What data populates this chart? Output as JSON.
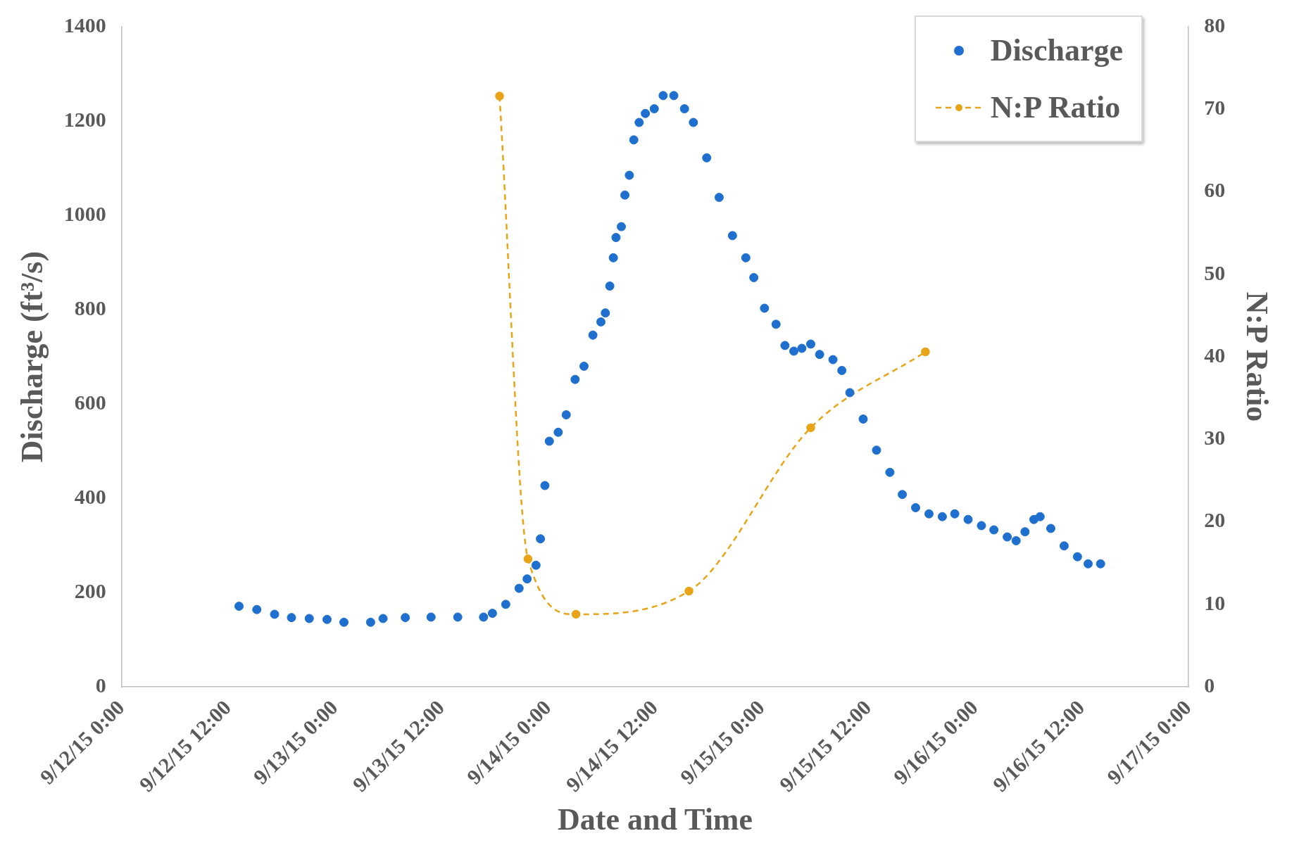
{
  "chart_data": {
    "type": "scatter",
    "xlabel": "Date and Time",
    "ylabel": "Discharge (ft³/s)",
    "y2label": "N:P Ratio",
    "xlim": [
      "--09-12T00:00",
      "--09-17T00:00"
    ],
    "xticks": [
      {
        "value": "--09-12T00:00",
        "label": "9/12/15 0:00"
      },
      {
        "value": "--09-12T12:00",
        "label": "9/12/15 12:00"
      },
      {
        "value": "--09-13T00:00",
        "label": "9/13/15 0:00"
      },
      {
        "value": "--09-13T12:00",
        "label": "9/13/15 12:00"
      },
      {
        "value": "--09-14T00:00",
        "label": "9/14/15 0:00"
      },
      {
        "value": "--09-14T12:00",
        "label": "9/14/15 12:00"
      },
      {
        "value": "--09-15T00:00",
        "label": "9/15/15 0:00"
      },
      {
        "value": "--09-15T12:00",
        "label": "9/15/15 12:00"
      },
      {
        "value": "--09-16T00:00",
        "label": "9/16/15 0:00"
      },
      {
        "value": "--09-16T12:00",
        "label": "9/16/15 12:00"
      },
      {
        "value": "--09-17T00:00",
        "label": "9/17/15 0:00"
      }
    ],
    "ylim": [
      0,
      1400
    ],
    "yticks": [
      0,
      200,
      400,
      600,
      800,
      1000,
      1200,
      1400
    ],
    "y2lim": [
      0,
      80
    ],
    "y2ticks": [
      0,
      10,
      20,
      30,
      40,
      50,
      60,
      70,
      80
    ],
    "grid": false,
    "legend": "top right",
    "series": [
      {
        "name": "Discharge",
        "color": "#1f6fcf",
        "marker": "circle",
        "x": [
          "--09-12T13:12",
          "--09-12T15:12",
          "--09-12T17:12",
          "--09-12T19:06",
          "--09-12T21:06",
          "--09-12T23:06",
          "--09-13T01:00",
          "--09-13T04:00",
          "--09-13T05:24",
          "--09-13T07:54",
          "--09-13T10:48",
          "--09-13T13:48",
          "--09-13T16:42",
          "--09-13T17:42",
          "--09-13T19:12",
          "--09-13T20:42",
          "--09-13T21:36",
          "--09-13T22:36",
          "--09-13T23:06",
          "--09-13T23:36",
          "--09-14T00:06",
          "--09-14T01:06",
          "--09-14T02:00",
          "--09-14T03:00",
          "--09-14T04:00",
          "--09-14T05:00",
          "--09-14T05:54",
          "--09-14T06:24",
          "--09-14T06:54",
          "--09-14T07:18",
          "--09-14T07:36",
          "--09-14T08:12",
          "--09-14T08:36",
          "--09-14T09:06",
          "--09-14T09:36",
          "--09-14T10:12",
          "--09-14T10:54",
          "--09-14T11:54",
          "--09-14T12:54",
          "--09-14T14:06",
          "--09-14T15:18",
          "--09-14T16:18",
          "--09-14T17:48",
          "--09-14T19:12",
          "--09-14T20:42",
          "--09-14T22:12",
          "--09-14T23:06",
          "--09-15T00:18",
          "--09-15T01:36",
          "--09-15T02:36",
          "--09-15T03:36",
          "--09-15T04:30",
          "--09-15T05:30",
          "--09-15T06:30",
          "--09-15T08:00",
          "--09-15T09:00",
          "--09-15T09:54",
          "--09-15T11:24",
          "--09-15T12:54",
          "--09-15T14:24",
          "--09-15T15:48",
          "--09-15T17:18",
          "--09-15T18:48",
          "--09-15T20:18",
          "--09-15T21:42",
          "--09-15T23:12",
          "--09-16T00:42",
          "--09-16T02:06",
          "--09-16T03:36",
          "--09-16T04:36",
          "--09-16T05:36",
          "--09-16T06:36",
          "--09-16T07:18",
          "--09-16T08:30",
          "--09-16T10:00",
          "--09-16T11:30",
          "--09-16T12:42",
          "--09-16T14:06"
        ],
        "values": [
          171,
          164,
          154,
          147,
          145,
          143,
          137,
          137,
          145,
          147,
          148,
          148,
          148,
          156,
          175,
          209,
          229,
          258,
          314,
          427,
          521,
          540,
          577,
          652,
          680,
          746,
          774,
          793,
          850,
          910,
          953,
          976,
          1043,
          1085,
          1160,
          1197,
          1216,
          1226,
          1254,
          1254,
          1226,
          1197,
          1122,
          1038,
          957,
          910,
          868,
          803,
          769,
          724,
          712,
          718,
          727,
          705,
          694,
          671,
          624,
          568,
          502,
          455,
          408,
          380,
          367,
          361,
          367,
          355,
          342,
          333,
          318,
          310,
          329,
          355,
          361,
          336,
          299,
          276,
          261,
          261
        ]
      },
      {
        "name": "N:P Ratio",
        "type": "line",
        "axis": "y2",
        "color": "#e8a317",
        "marker": "circle",
        "line_style": "dashed",
        "x": [
          "--09-13T18:30",
          "--09-13T21:42",
          "--09-14T03:06",
          "--09-14T15:48",
          "--09-15T05:30",
          "--09-15T18:24"
        ],
        "values": [
          71.6,
          15.5,
          8.8,
          11.6,
          31.4,
          40.6
        ]
      }
    ]
  }
}
